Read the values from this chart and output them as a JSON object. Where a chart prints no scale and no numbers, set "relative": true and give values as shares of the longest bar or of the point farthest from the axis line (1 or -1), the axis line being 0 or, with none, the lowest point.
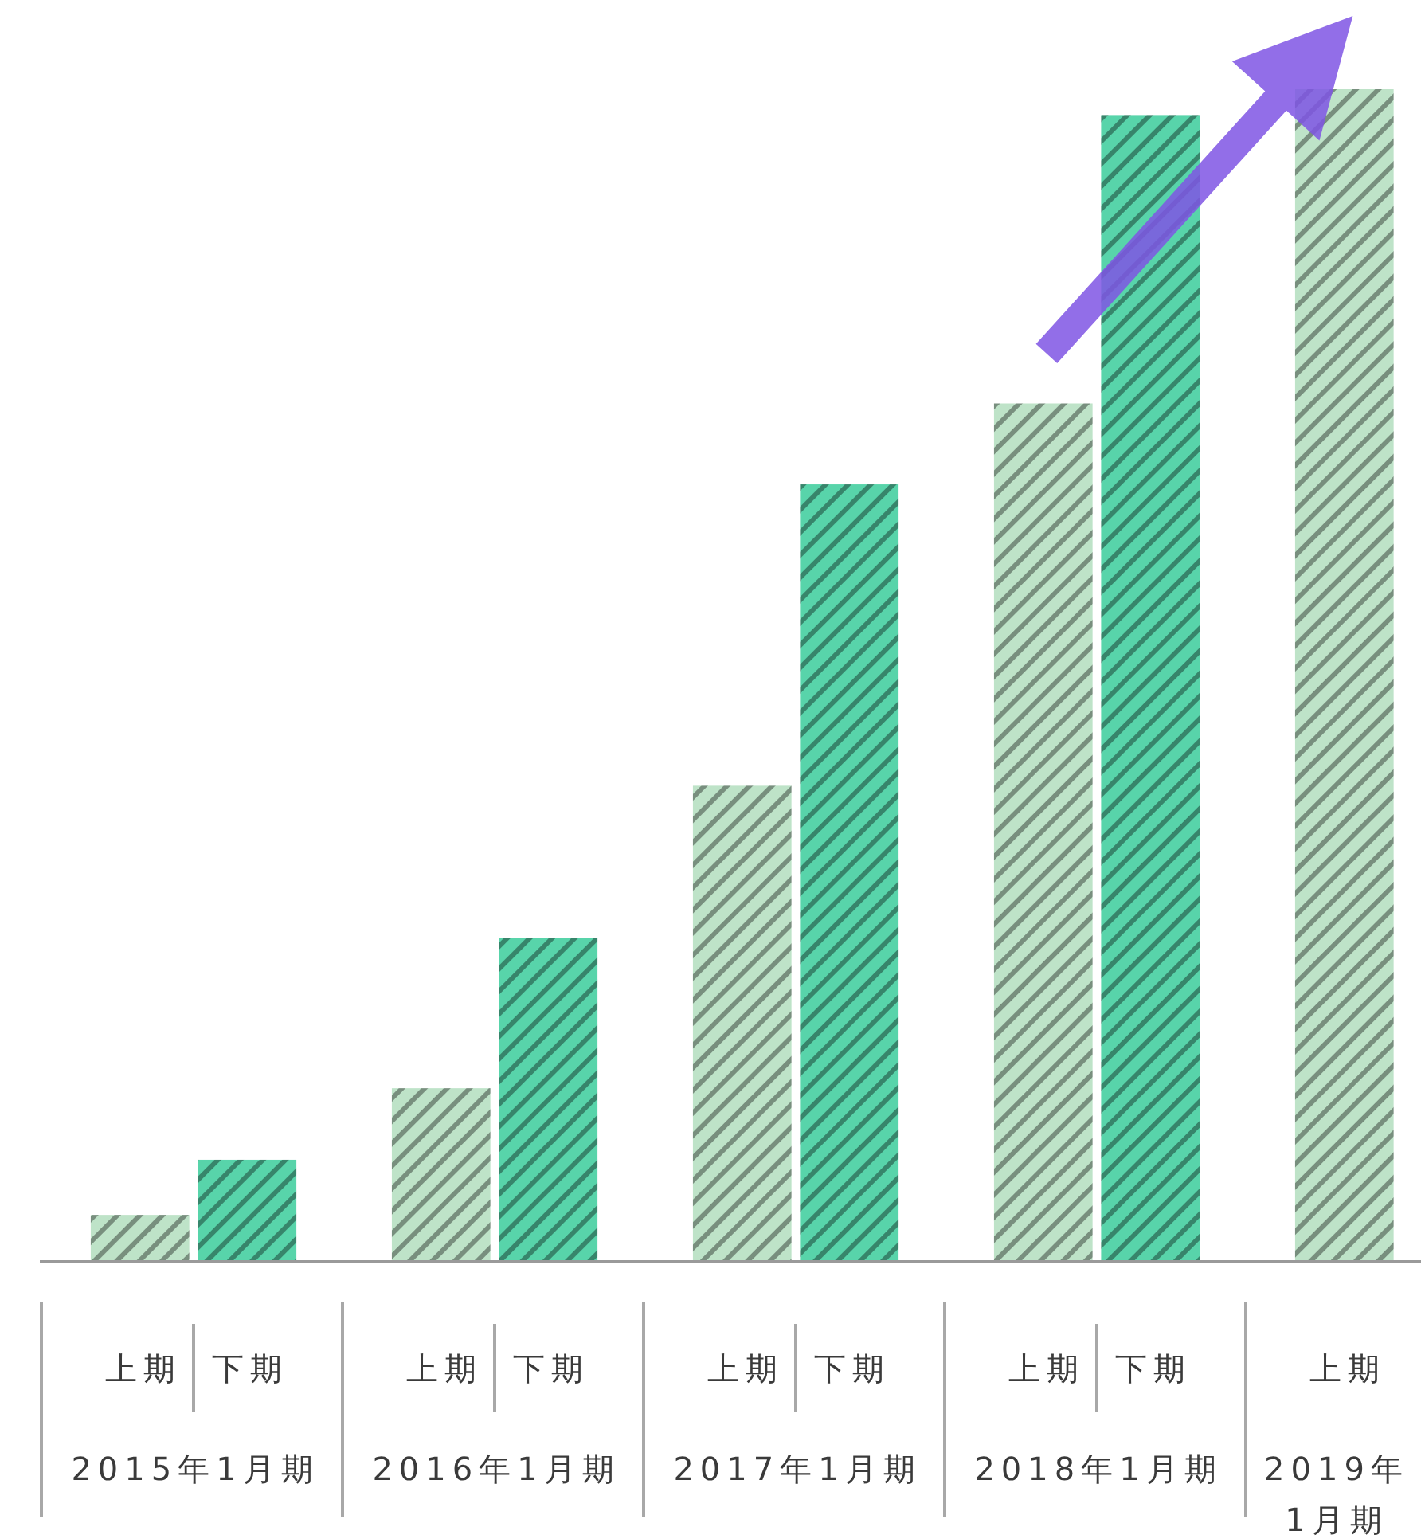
{
  "chart_data": {
    "type": "bar",
    "relative": true,
    "categories": [
      "上期",
      "下期",
      "上期",
      "下期",
      "上期",
      "下期",
      "上期",
      "下期",
      "上期"
    ],
    "values": [
      0.04,
      0.087,
      0.148,
      0.276,
      0.406,
      0.663,
      0.732,
      0.978,
      1
    ],
    "colors": [
      "#bee3c8",
      "#58d4aa",
      "#bee3c8",
      "#58d4aa",
      "#bee3c8",
      "#58d4aa",
      "#bee3c8",
      "#58d4aa",
      "#bee3c8"
    ],
    "annotations": [
      "2015年1月期",
      "2016年1月期",
      "2017年1月期",
      "2018年1月期",
      "2019年1月期"
    ]
  }
}
